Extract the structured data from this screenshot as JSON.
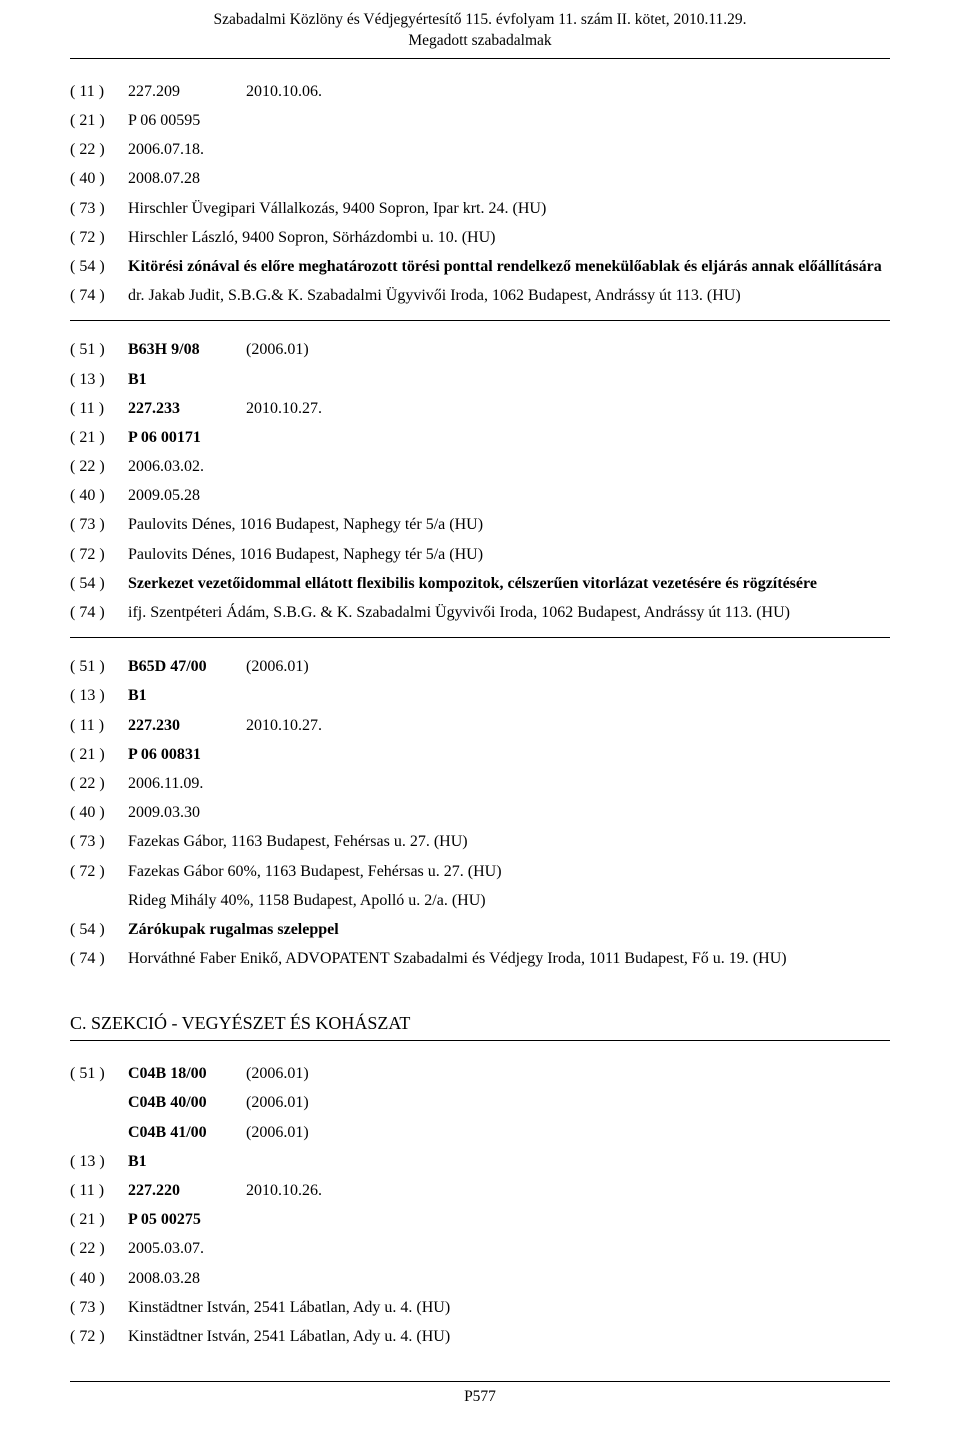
{
  "header": {
    "line1": "Szabadalmi Közlöny és Védjegyértesítő 115. évfolyam 11. szám II. kötet, 2010.11.29.",
    "line2": "Megadott szabadalmak"
  },
  "records": [
    {
      "rows": [
        {
          "inid": "( 11 )",
          "c2": "227.209",
          "c3": "2010.10.06."
        },
        {
          "inid": "( 21 )",
          "c2": "P 06 00595"
        },
        {
          "inid": "( 22 )",
          "c2": "2006.07.18."
        },
        {
          "inid": "( 40 )",
          "c2": "2008.07.28"
        },
        {
          "inid": "( 73 )",
          "rest": "Hirschler Üvegipari Vállalkozás, 9400 Sopron, Ipar krt. 24. (HU)"
        },
        {
          "inid": "( 72 )",
          "rest": "Hirschler László, 9400 Sopron, Sörházdombi u. 10. (HU)"
        },
        {
          "inid": "( 54 )",
          "rest_bold": "Kitörési zónával és előre meghatározott törési ponttal rendelkező menekülőablak és eljárás annak előállítására"
        },
        {
          "inid": "( 74 )",
          "rest": "dr. Jakab Judit, S.B.G.& K. Szabadalmi Ügyvivői Iroda, 1062 Budapest, Andrássy út 113. (HU)"
        }
      ],
      "sep_after": true
    },
    {
      "rows": [
        {
          "inid": "( 51 )",
          "c2_bold": "B63H 9/08",
          "c3": "(2006.01)"
        },
        {
          "inid": "( 13 )",
          "c2_bold": "B1"
        },
        {
          "inid": "( 11 )",
          "c2_bold": "227.233",
          "c3": "2010.10.27."
        },
        {
          "inid": "( 21 )",
          "c2_bold": "P 06 00171"
        },
        {
          "inid": "( 22 )",
          "c2": "2006.03.02."
        },
        {
          "inid": "( 40 )",
          "c2": "2009.05.28"
        },
        {
          "inid": "( 73 )",
          "rest": "Paulovits Dénes, 1016 Budapest, Naphegy tér 5/a (HU)"
        },
        {
          "inid": "( 72 )",
          "rest": "Paulovits Dénes, 1016 Budapest, Naphegy tér 5/a (HU)"
        },
        {
          "inid": "( 54 )",
          "rest_bold": "Szerkezet vezetőidommal ellátott flexibilis kompozitok, célszerűen vitorlázat vezetésére és rögzítésére"
        },
        {
          "inid": "( 74 )",
          "rest": "ifj. Szentpéteri Ádám, S.B.G. & K. Szabadalmi Ügyvivői Iroda, 1062 Budapest, Andrássy út 113. (HU)"
        }
      ],
      "sep_after": true
    },
    {
      "rows": [
        {
          "inid": "( 51 )",
          "c2_bold": "B65D 47/00",
          "c3": "(2006.01)"
        },
        {
          "inid": "( 13 )",
          "c2_bold": "B1"
        },
        {
          "inid": "( 11 )",
          "c2_bold": "227.230",
          "c3": "2010.10.27."
        },
        {
          "inid": "( 21 )",
          "c2_bold": "P 06 00831"
        },
        {
          "inid": "( 22 )",
          "c2": "2006.11.09."
        },
        {
          "inid": "( 40 )",
          "c2": "2009.03.30"
        },
        {
          "inid": "( 73 )",
          "rest": "Fazekas Gábor, 1163 Budapest, Fehérsas u. 27. (HU)"
        },
        {
          "inid": "( 72 )",
          "rest": "Fazekas Gábor 60%, 1163 Budapest, Fehérsas u. 27. (HU)"
        },
        {
          "inid": "",
          "rest": "Rideg Mihály 40%, 1158 Budapest, Apolló u. 2/a. (HU)"
        },
        {
          "inid": "( 54 )",
          "rest_bold": "Zárókupak rugalmas szeleppel"
        },
        {
          "inid": "( 74 )",
          "rest": "Horváthné Faber Enikő, ADVOPATENT Szabadalmi és Védjegy Iroda, 1011 Budapest, Fő u. 19. (HU)"
        }
      ],
      "sep_after": false
    }
  ],
  "section": {
    "heading": "C. SZEKCIÓ - VEGYÉSZET ÉS KOHÁSZAT"
  },
  "records2": [
    {
      "rows": [
        {
          "inid": "( 51 )",
          "c2_bold": "C04B 18/00",
          "c3": "(2006.01)"
        },
        {
          "inid": "",
          "c2_bold": "C04B 40/00",
          "c3": "(2006.01)"
        },
        {
          "inid": "",
          "c2_bold": "C04B 41/00",
          "c3": "(2006.01)"
        },
        {
          "inid": "( 13 )",
          "c2_bold": "B1"
        },
        {
          "inid": "( 11 )",
          "c2_bold": "227.220",
          "c3": "2010.10.26."
        },
        {
          "inid": "( 21 )",
          "c2_bold": "P 05 00275"
        },
        {
          "inid": "( 22 )",
          "c2": "2005.03.07."
        },
        {
          "inid": "( 40 )",
          "c2": "2008.03.28"
        },
        {
          "inid": "( 73 )",
          "rest": "Kinstädtner István, 2541 Lábatlan, Ady u. 4. (HU)"
        },
        {
          "inid": "( 72 )",
          "rest": "Kinstädtner István, 2541 Lábatlan, Ady u. 4. (HU)"
        }
      ]
    }
  ],
  "footer": {
    "page_number": "P577"
  }
}
